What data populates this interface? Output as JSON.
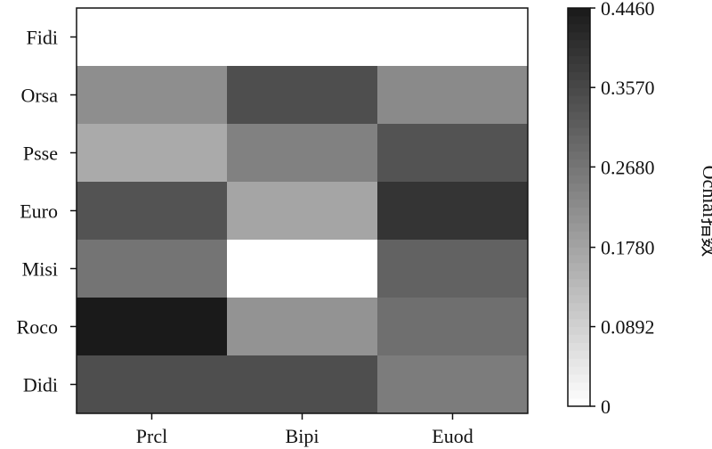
{
  "chart_data": {
    "type": "heatmap",
    "title": "",
    "xlabel": "",
    "ylabel": "",
    "x_categories": [
      "Prcl",
      "Bipi",
      "Euod"
    ],
    "y_categories": [
      "Fidi",
      "Orsa",
      "Psse",
      "Euro",
      "Misi",
      "Roco",
      "Didi"
    ],
    "values": [
      [
        0.0,
        0.0,
        0.0
      ],
      [
        0.22,
        0.345,
        0.228
      ],
      [
        0.165,
        0.245,
        0.335
      ],
      [
        0.335,
        0.175,
        0.395
      ],
      [
        0.27,
        0.0,
        0.305
      ],
      [
        0.446,
        0.21,
        0.28
      ],
      [
        0.345,
        0.345,
        0.255
      ]
    ],
    "colormap": "Greys",
    "vmin": 0,
    "vmax": 0.446,
    "colorbar": {
      "label": "Ochiai指数",
      "ticks": [
        0,
        0.0892,
        0.178,
        0.268,
        0.357,
        0.446
      ],
      "tick_labels": [
        "0",
        "0.0892",
        "0.1780",
        "0.2680",
        "0.3570",
        "0.4460"
      ]
    }
  }
}
